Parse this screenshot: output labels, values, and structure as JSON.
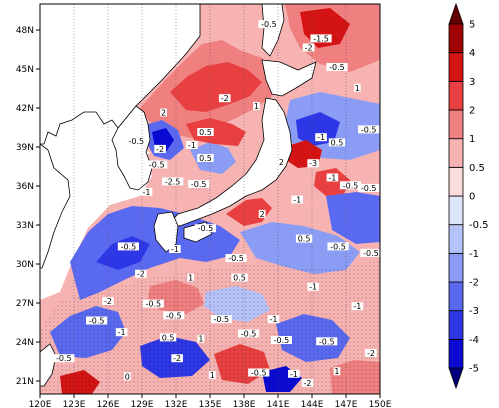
{
  "chart_data": {
    "type": "heatmap",
    "title": "",
    "xlabel": "",
    "ylabel": "",
    "xlim": [
      120,
      150
    ],
    "ylim": [
      20,
      50
    ],
    "x_ticks": [
      "120E",
      "123E",
      "126E",
      "129E",
      "132E",
      "135E",
      "138E",
      "141E",
      "144E",
      "147E",
      "150E"
    ],
    "y_ticks": [
      "21N",
      "24N",
      "27N",
      "30N",
      "33N",
      "36N",
      "39N",
      "42N",
      "45N",
      "48N"
    ],
    "x_tick_values": [
      120,
      123,
      126,
      129,
      132,
      135,
      138,
      141,
      144,
      147,
      150
    ],
    "y_tick_values": [
      21,
      24,
      27,
      30,
      33,
      36,
      39,
      42,
      45,
      48
    ],
    "grid": true,
    "colorbar": {
      "placement": "right",
      "levels": [
        -5,
        -4,
        -3,
        -2,
        -1,
        -0.5,
        0,
        0.5,
        1,
        2,
        3,
        4,
        5
      ],
      "level_labels": [
        "-5",
        "-4",
        "-3",
        "-2",
        "-1",
        "-0.5",
        "0",
        "0.5",
        "1",
        "2",
        "3",
        "4",
        "5"
      ],
      "colors": [
        "#00007a",
        "#0a0ad2",
        "#2d37e6",
        "#5a6af0",
        "#8a9cf4",
        "#b6c3f8",
        "#dde5fc",
        "#fcdcdc",
        "#f7b2b2",
        "#f08080",
        "#e84040",
        "#d41414",
        "#a00000",
        "#640000"
      ]
    },
    "contour_labels": [
      {
        "lon": 140.2,
        "lat": 48.3,
        "text": "-0.5"
      },
      {
        "lon": 143.7,
        "lat": 46.5,
        "text": "-2"
      },
      {
        "lon": 144.8,
        "lat": 47.2,
        "text": "-1.5"
      },
      {
        "lon": 146.2,
        "lat": 45.0,
        "text": "-0.5"
      },
      {
        "lon": 148.0,
        "lat": 43.4,
        "text": "1"
      },
      {
        "lon": 136.3,
        "lat": 42.6,
        "text": "-2"
      },
      {
        "lon": 139.1,
        "lat": 42.0,
        "text": "1"
      },
      {
        "lon": 130.9,
        "lat": 41.5,
        "text": "2"
      },
      {
        "lon": 134.6,
        "lat": 40.0,
        "text": "0.5"
      },
      {
        "lon": 128.5,
        "lat": 39.3,
        "text": "-0.5"
      },
      {
        "lon": 130.6,
        "lat": 38.7,
        "text": "-2"
      },
      {
        "lon": 133.4,
        "lat": 39.0,
        "text": "-1"
      },
      {
        "lon": 134.6,
        "lat": 38.0,
        "text": "0.5"
      },
      {
        "lon": 130.3,
        "lat": 37.5,
        "text": "-0.5"
      },
      {
        "lon": 131.7,
        "lat": 36.2,
        "text": "-2.5"
      },
      {
        "lon": 134.0,
        "lat": 36.0,
        "text": "-0.5"
      },
      {
        "lon": 129.4,
        "lat": 35.4,
        "text": "-1"
      },
      {
        "lon": 144.8,
        "lat": 39.6,
        "text": "-1"
      },
      {
        "lon": 146.2,
        "lat": 39.2,
        "text": "0.5"
      },
      {
        "lon": 149.0,
        "lat": 40.2,
        "text": "-0.5"
      },
      {
        "lon": 144.1,
        "lat": 37.6,
        "text": "-3"
      },
      {
        "lon": 141.3,
        "lat": 37.7,
        "text": "2"
      },
      {
        "lon": 145.8,
        "lat": 36.5,
        "text": "-1"
      },
      {
        "lon": 147.4,
        "lat": 35.9,
        "text": "-0.5"
      },
      {
        "lon": 149.0,
        "lat": 35.7,
        "text": "-0.5"
      },
      {
        "lon": 142.7,
        "lat": 34.8,
        "text": "-1"
      },
      {
        "lon": 139.6,
        "lat": 33.7,
        "text": "2"
      },
      {
        "lon": 134.6,
        "lat": 32.6,
        "text": "-0.5"
      },
      {
        "lon": 127.8,
        "lat": 31.2,
        "text": "-0.5"
      },
      {
        "lon": 131.9,
        "lat": 31.0,
        "text": "-1"
      },
      {
        "lon": 137.3,
        "lat": 30.3,
        "text": "-0.5"
      },
      {
        "lon": 143.3,
        "lat": 31.8,
        "text": "0.5"
      },
      {
        "lon": 146.3,
        "lat": 31.2,
        "text": "-0.5"
      },
      {
        "lon": 149.2,
        "lat": 30.7,
        "text": "-0.5"
      },
      {
        "lon": 128.9,
        "lat": 29.1,
        "text": "-2"
      },
      {
        "lon": 133.3,
        "lat": 28.8,
        "text": "1"
      },
      {
        "lon": 137.6,
        "lat": 28.8,
        "text": "0.5"
      },
      {
        "lon": 144.1,
        "lat": 28.1,
        "text": "-1"
      },
      {
        "lon": 126.0,
        "lat": 27.0,
        "text": "-2"
      },
      {
        "lon": 130.0,
        "lat": 26.8,
        "text": "-0.5"
      },
      {
        "lon": 131.8,
        "lat": 25.9,
        "text": "-0.5"
      },
      {
        "lon": 136.0,
        "lat": 25.6,
        "text": "-0.5"
      },
      {
        "lon": 140.6,
        "lat": 25.6,
        "text": "-1"
      },
      {
        "lon": 148.0,
        "lat": 26.6,
        "text": "-1"
      },
      {
        "lon": 125.0,
        "lat": 25.5,
        "text": "-0.5"
      },
      {
        "lon": 127.2,
        "lat": 24.6,
        "text": "-1"
      },
      {
        "lon": 131.3,
        "lat": 24.2,
        "text": "0.5"
      },
      {
        "lon": 134.2,
        "lat": 24.1,
        "text": "1"
      },
      {
        "lon": 138.4,
        "lat": 24.5,
        "text": "-0.5"
      },
      {
        "lon": 141.3,
        "lat": 24.0,
        "text": "-0.5"
      },
      {
        "lon": 145.3,
        "lat": 23.9,
        "text": "-0.5"
      },
      {
        "lon": 149.2,
        "lat": 23.0,
        "text": "-2"
      },
      {
        "lon": 122.1,
        "lat": 22.6,
        "text": "-0.5"
      },
      {
        "lon": 132.1,
        "lat": 22.6,
        "text": "-2"
      },
      {
        "lon": 139.3,
        "lat": 21.5,
        "text": "-0.5"
      },
      {
        "lon": 142.4,
        "lat": 21.4,
        "text": "-1"
      },
      {
        "lon": 146.2,
        "lat": 21.6,
        "text": "1"
      },
      {
        "lon": 143.6,
        "lat": 20.7,
        "text": "-2"
      },
      {
        "lon": 127.7,
        "lat": 21.2,
        "text": "0"
      },
      {
        "lon": 135.2,
        "lat": 21.3,
        "text": "1"
      }
    ]
  }
}
